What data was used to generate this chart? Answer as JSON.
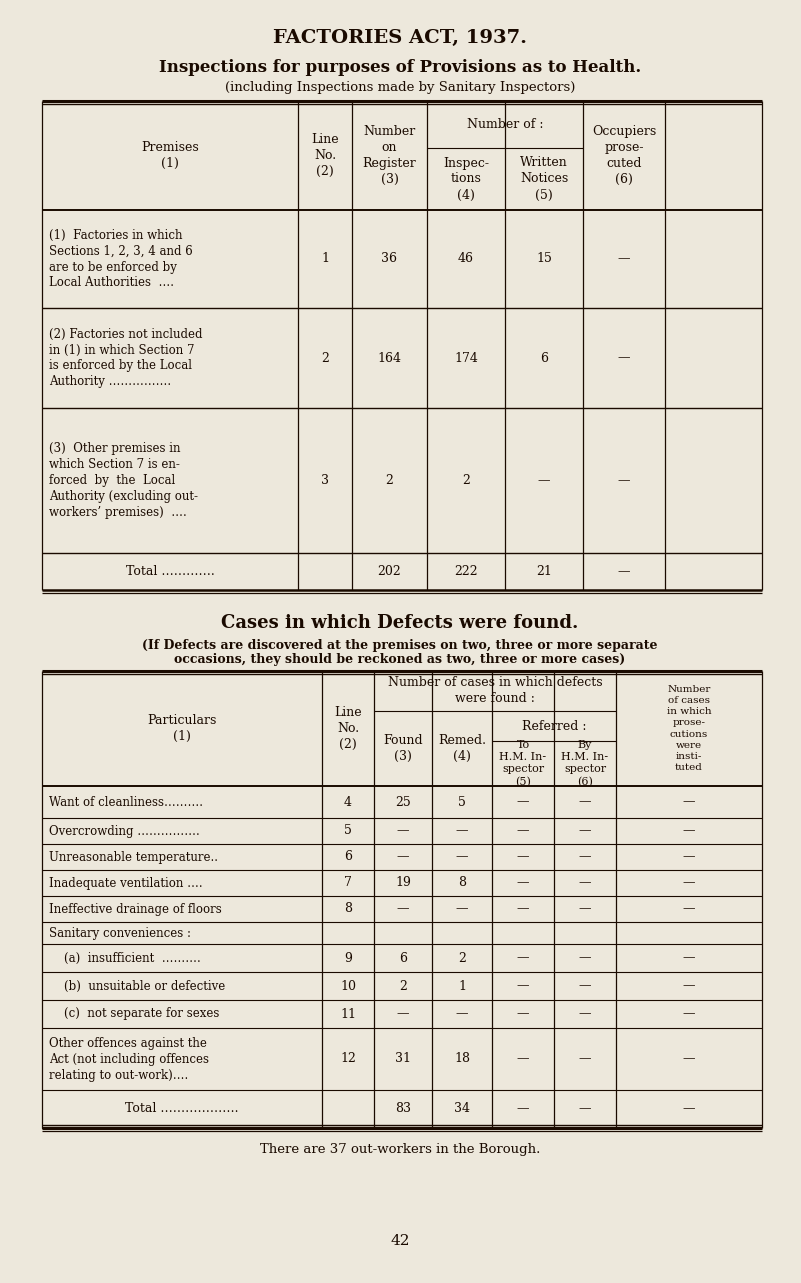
{
  "bg_color": "#ede8dc",
  "text_color": "#1a0a00",
  "title1": "FACTORIES ACT, 1937.",
  "title2": "Inspections for purposes of Provisions as to Health.",
  "title3": "(including Inspections made by Sanitary Inspectors)",
  "section2_title": "Cases in which Defects were found.",
  "section2_sub1": "(If Defects are discovered at the premises on two, three or more separate",
  "section2_sub2": "occasions, they should be reckoned as two, three or more cases)",
  "footer": "There are 37 out-workers in the Borough.",
  "page_num": "42",
  "t1_rows": [
    {
      "label": "(1)  Factories in which\nSections 1, 2, 3, 4 and 6\nare to be enforced by\nLocal Authorities  ….",
      "line_no": "1",
      "register": "36",
      "inspections": "46",
      "written": "15",
      "occupiers": "—",
      "is_total": false
    },
    {
      "label": "(2) Factories not included\nin (1) in which Section 7\nis enforced by the Local\nAuthority …………….",
      "line_no": "2",
      "register": "164",
      "inspections": "174",
      "written": "6",
      "occupiers": "—",
      "is_total": false
    },
    {
      "label": "(3)  Other premises in\nwhich Section 7 is en-\nforced  by  the  Local\nAuthority (excluding out-\nworkers’ premises)  ….",
      "line_no": "3",
      "register": "2",
      "inspections": "2",
      "written": "—",
      "occupiers": "—",
      "is_total": false
    },
    {
      "label": "Total ………….",
      "line_no": "",
      "register": "202",
      "inspections": "222",
      "written": "21",
      "occupiers": "—",
      "is_total": true
    }
  ],
  "t2_rows": [
    {
      "label": "Want of cleanliness……….",
      "line_no": "4",
      "found": "25",
      "remed": "5",
      "ref_to": "—",
      "ref_by": "—",
      "prose": "—",
      "multiline": false,
      "is_total": false,
      "is_header": false
    },
    {
      "label": "Overcrowding …………….",
      "line_no": "5",
      "found": "—",
      "remed": "—",
      "ref_to": "—",
      "ref_by": "—",
      "prose": "—",
      "multiline": false,
      "is_total": false,
      "is_header": false
    },
    {
      "label": "Unreasonable temperature..",
      "line_no": "6",
      "found": "—",
      "remed": "—",
      "ref_to": "—",
      "ref_by": "—",
      "prose": "—",
      "multiline": false,
      "is_total": false,
      "is_header": false
    },
    {
      "label": "Inadequate ventilation ….",
      "line_no": "7",
      "found": "19",
      "remed": "8",
      "ref_to": "—",
      "ref_by": "—",
      "prose": "—",
      "multiline": false,
      "is_total": false,
      "is_header": false
    },
    {
      "label": "Ineffective drainage of floors",
      "line_no": "8",
      "found": "—",
      "remed": "—",
      "ref_to": "—",
      "ref_by": "—",
      "prose": "—",
      "multiline": false,
      "is_total": false,
      "is_header": false
    },
    {
      "label": "Sanitary conveniences :",
      "line_no": "",
      "found": "",
      "remed": "",
      "ref_to": "",
      "ref_by": "",
      "prose": "",
      "multiline": false,
      "is_total": false,
      "is_header": true
    },
    {
      "label": "    (a)  insufficient  ……….",
      "line_no": "9",
      "found": "6",
      "remed": "2",
      "ref_to": "—",
      "ref_by": "—",
      "prose": "—",
      "multiline": false,
      "is_total": false,
      "is_header": false
    },
    {
      "label": "    (b)  unsuitable or defective",
      "line_no": "10",
      "found": "2",
      "remed": "1",
      "ref_to": "—",
      "ref_by": "—",
      "prose": "—",
      "multiline": false,
      "is_total": false,
      "is_header": false
    },
    {
      "label": "    (c)  not separate for sexes",
      "line_no": "11",
      "found": "—",
      "remed": "—",
      "ref_to": "—",
      "ref_by": "—",
      "prose": "—",
      "multiline": false,
      "is_total": false,
      "is_header": false
    },
    {
      "label": "Other offences against the\nAct (not including offences\nrelating to out-work)….",
      "line_no": "12",
      "found": "31",
      "remed": "18",
      "ref_to": "—",
      "ref_by": "—",
      "prose": "—",
      "multiline": true,
      "is_total": false,
      "is_header": false
    },
    {
      "label": "Total ……………….",
      "line_no": "",
      "found": "83",
      "remed": "34",
      "ref_to": "—",
      "ref_by": "—",
      "prose": "—",
      "multiline": false,
      "is_total": true,
      "is_header": false
    }
  ]
}
